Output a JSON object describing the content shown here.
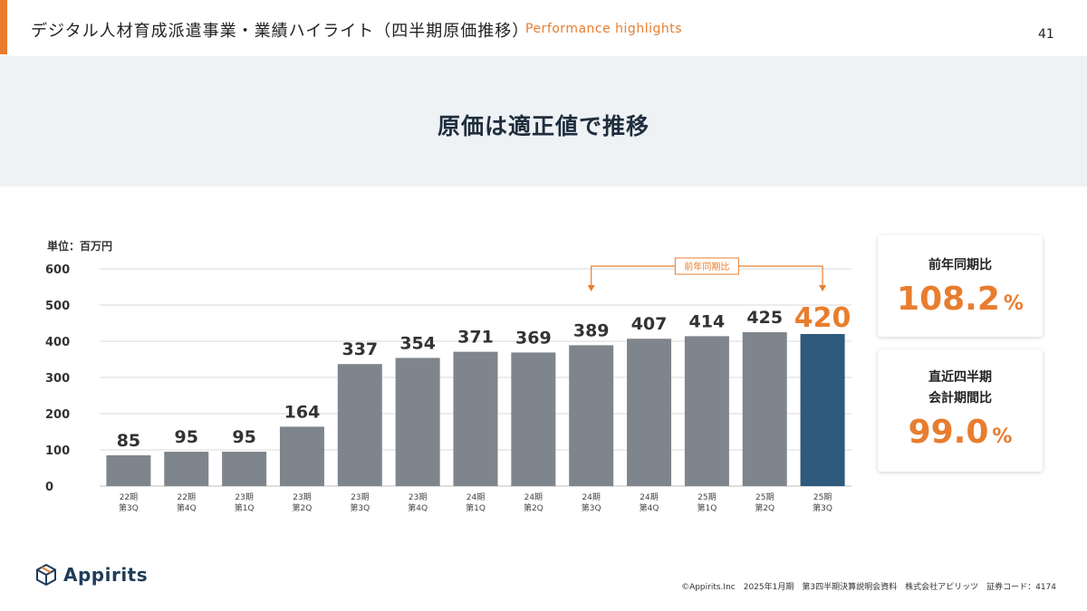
{
  "header": {
    "title": "デジタル人材育成派遣事業・業績ハイライト（四半期原価推移）",
    "subtitle": "Performance highlights",
    "page_number": "41"
  },
  "banner": {
    "title": "原価は適正値で推移"
  },
  "chart_data": {
    "type": "bar",
    "unit_label": "単位：百万円",
    "categories": [
      [
        "22期",
        "第3Q"
      ],
      [
        "22期",
        "第4Q"
      ],
      [
        "23期",
        "第1Q"
      ],
      [
        "23期",
        "第2Q"
      ],
      [
        "23期",
        "第3Q"
      ],
      [
        "23期",
        "第4Q"
      ],
      [
        "24期",
        "第1Q"
      ],
      [
        "24期",
        "第2Q"
      ],
      [
        "24期",
        "第3Q"
      ],
      [
        "24期",
        "第4Q"
      ],
      [
        "25期",
        "第1Q"
      ],
      [
        "25期",
        "第2Q"
      ],
      [
        "25期",
        "第3Q"
      ]
    ],
    "values": [
      85,
      95,
      95,
      164,
      337,
      354,
      371,
      369,
      389,
      407,
      414,
      425,
      420
    ],
    "data_labels": [
      "85",
      "95",
      "95",
      "164",
      "337",
      "354",
      "371",
      "369",
      "389",
      "407",
      "414",
      "425",
      "420"
    ],
    "y_ticks": [
      "0",
      "100",
      "200",
      "300",
      "400",
      "500",
      "600"
    ],
    "ylim": [
      0,
      600
    ],
    "grid": true,
    "highlight_index": 12,
    "comparison": {
      "label": "前年同期比",
      "from_index": 8,
      "to_index": 12
    },
    "colors": {
      "bar": "#7f858c",
      "highlight": "#2e5a7c",
      "accent": "#e87d2e",
      "grid": "#d9d9d9"
    }
  },
  "kpis": [
    {
      "label_lines": [
        "前年同期比"
      ],
      "value": "108.2",
      "unit": "%"
    },
    {
      "label_lines": [
        "直近四半期",
        "会計期間比"
      ],
      "value": "99.0",
      "unit": "%"
    }
  ],
  "logo": {
    "text": "Appirits",
    "icon": "cube-icon"
  },
  "footer": {
    "text": "©Appirits.Inc　2025年1月期　第3四半期決算説明会資料　株式会社アピリッツ　証券コード：4174"
  }
}
